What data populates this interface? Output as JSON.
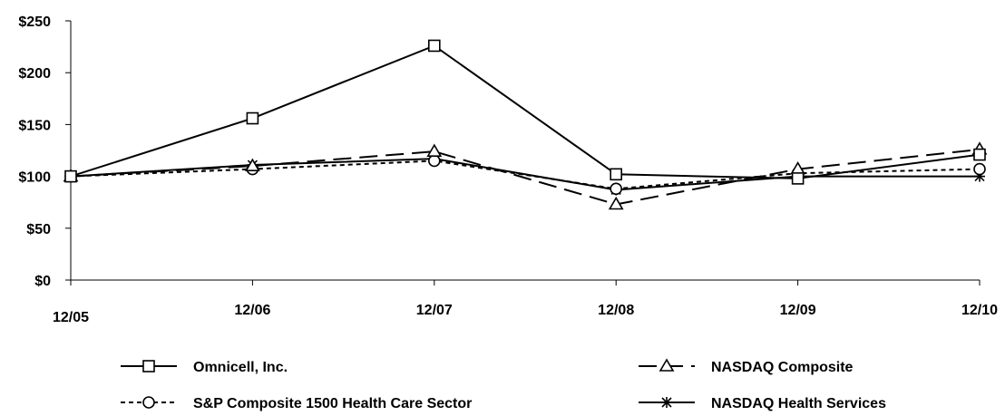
{
  "chart_data": {
    "type": "line",
    "title": "",
    "xlabel": "",
    "ylabel": "",
    "categories": [
      "12/05",
      "12/06",
      "12/07",
      "12/08",
      "12/09",
      "12/10"
    ],
    "ylim": [
      0,
      250
    ],
    "yticks": [
      0,
      50,
      100,
      150,
      200,
      250
    ],
    "ytick_labels": [
      "$0",
      "$50",
      "$100",
      "$150",
      "$200",
      "$250"
    ],
    "grid": false,
    "legend_position": "bottom",
    "series": [
      {
        "name": "Omnicell, Inc.",
        "values": [
          100,
          156,
          226,
          102,
          98,
          121
        ],
        "color": "#000000",
        "dash": "solid",
        "marker": "square"
      },
      {
        "name": "NASDAQ Composite",
        "values": [
          100,
          110,
          124,
          73,
          107,
          126
        ],
        "color": "#000000",
        "dash": "long-dash",
        "marker": "triangle"
      },
      {
        "name": "S&P Composite 1500 Health Care Sector",
        "values": [
          100,
          107,
          115,
          88,
          103,
          107
        ],
        "color": "#000000",
        "dash": "short-dash",
        "marker": "circle"
      },
      {
        "name": "NASDAQ Health Services",
        "values": [
          100,
          111,
          117,
          87,
          100,
          100
        ],
        "color": "#000000",
        "dash": "solid",
        "marker": "asterisk"
      }
    ]
  }
}
